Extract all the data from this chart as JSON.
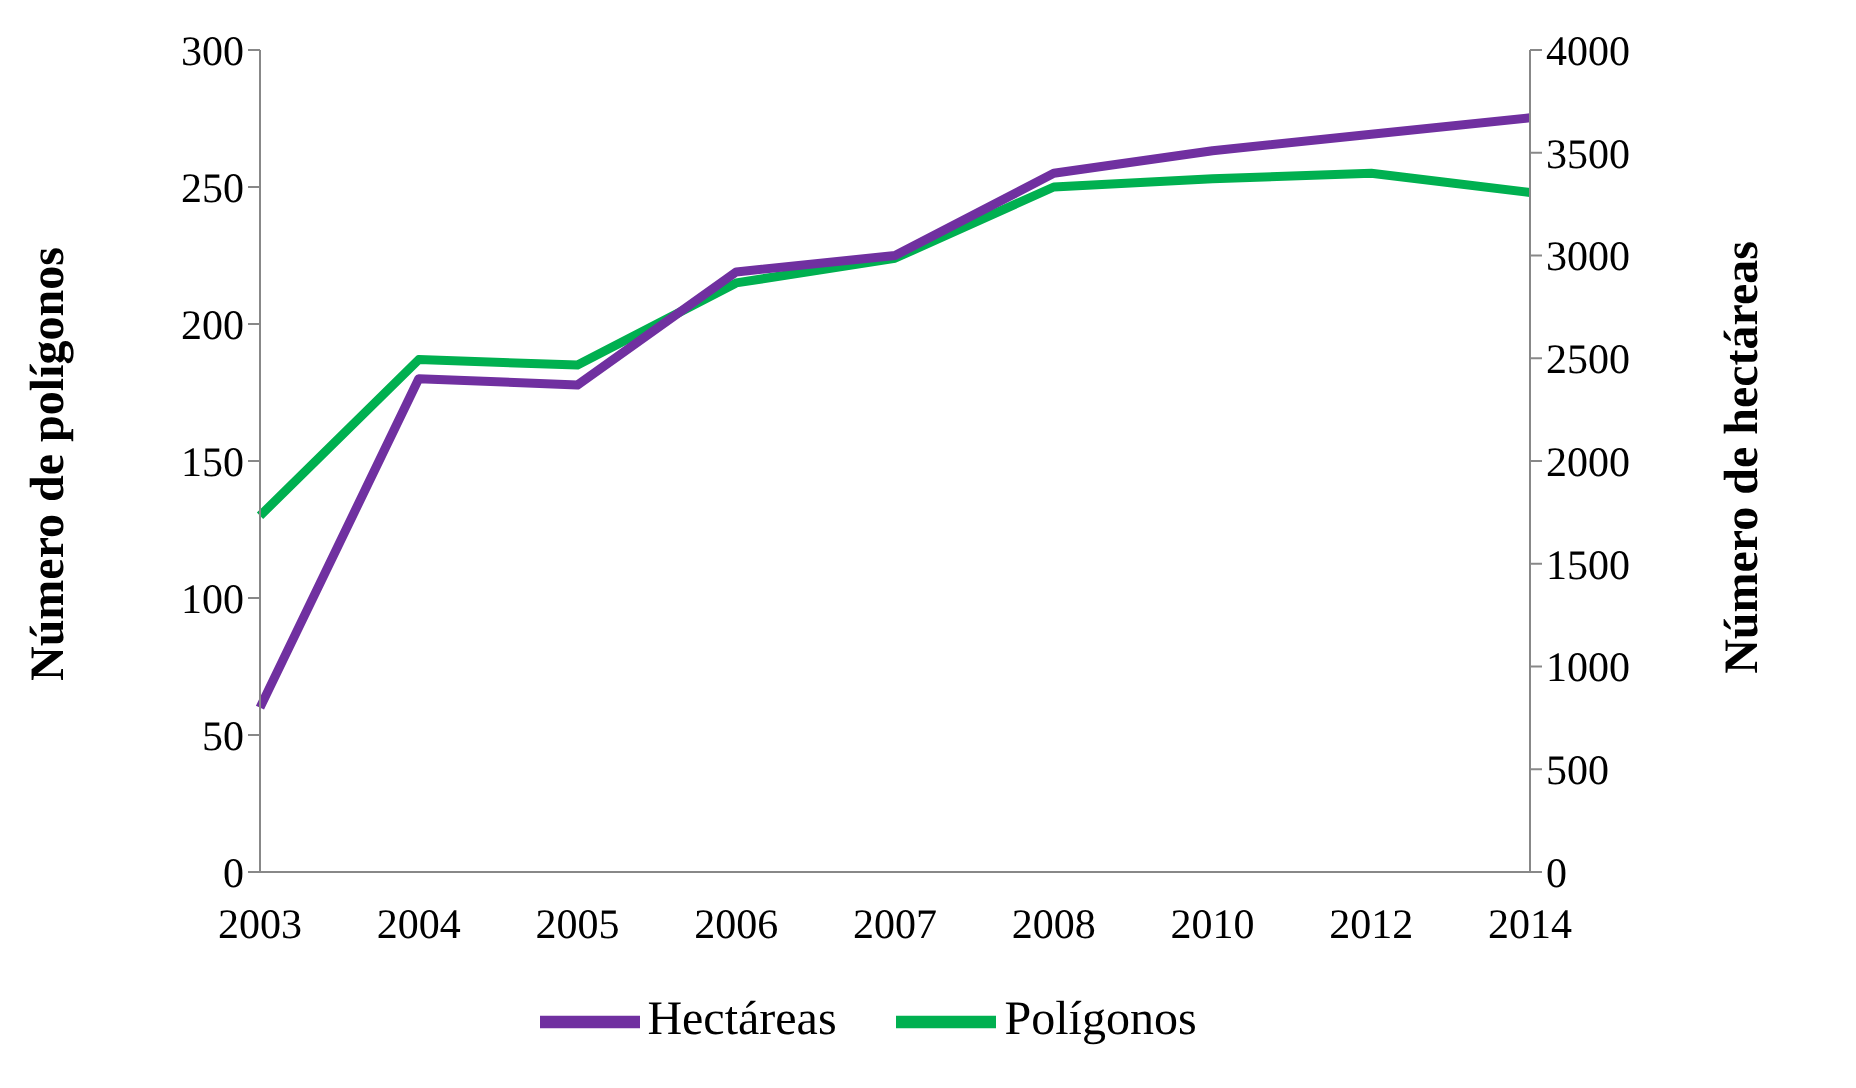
{
  "chart_data": {
    "type": "line",
    "categories": [
      "2003",
      "2004",
      "2005",
      "2006",
      "2007",
      "2008",
      "2010",
      "2012",
      "2014"
    ],
    "series": [
      {
        "name": "Polígonos",
        "color": "#00b050",
        "values": [
          130,
          187,
          185,
          215,
          224,
          250,
          253,
          255,
          248
        ]
      },
      {
        "name": "Hectáreas",
        "color": "#7030a0",
        "axis": "y2",
        "values": [
          800,
          2400,
          2370,
          2920,
          3000,
          3400,
          3510,
          3590,
          3670
        ]
      }
    ],
    "ylabel": "Número de polígonos",
    "y2label": "Número de hectáreas",
    "ylim": [
      0,
      300
    ],
    "yticks": [
      0,
      50,
      100,
      150,
      200,
      250,
      300
    ],
    "y2lim": [
      0,
      4000
    ],
    "y2ticks": [
      0,
      500,
      1000,
      1500,
      2000,
      2500,
      3000,
      3500,
      4000
    ],
    "grid": false,
    "legend": "bottom",
    "marker": "none",
    "line_style": "solid"
  }
}
